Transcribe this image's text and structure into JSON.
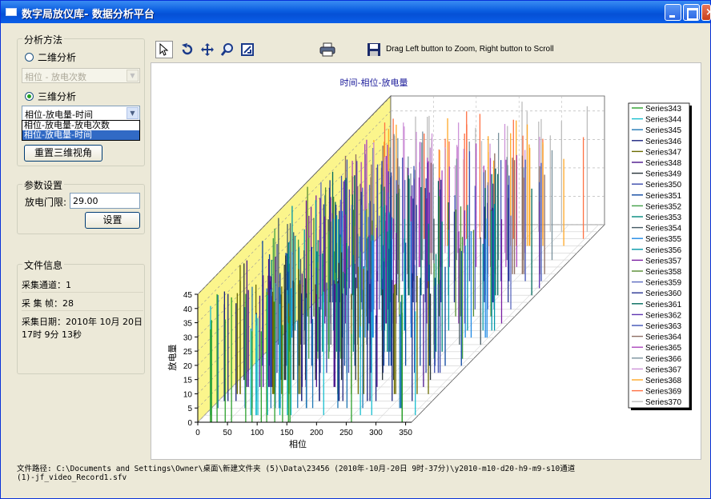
{
  "window": {
    "title": "数字局放仪库- 数据分析平台"
  },
  "analysis": {
    "legend": "分析方法",
    "mode_2d": "二维分析",
    "combo_2d": "相位 - 放电次数",
    "mode_3d": "三维分析",
    "combo_3d": "相位-放电量-时间",
    "options": [
      "相位-放电量-放电次数",
      "相位-放电量-时间"
    ],
    "reset_button": "重置三维视角"
  },
  "params": {
    "legend": "参数设置",
    "threshold_label": "放电门限:",
    "threshold_value": "29.00",
    "set_button": "设置"
  },
  "file_info": {
    "legend": "文件信息",
    "channel": "采集通道：1",
    "frames": "采 集 帧：28",
    "date": "采集日期：2010年 10月 20日 17时 9分 13秒"
  },
  "toolbar": {
    "hint": "Drag Left button to Zoom, Right button to Scroll"
  },
  "statusbar": {
    "line1": "文件路径:  C:\\Documents and Settings\\Owner\\桌面\\新建文件夹 (5)\\Data\\23456 (2010年-10月-20日 9时-37分)\\y2010-m10-d20-h9-m9-s10通道",
    "line2": "(1)-jf_video_Record1.sfv"
  },
  "chart_data": {
    "type": "3d-bar",
    "title": "时间-相位-放电量",
    "xlabel": "相位",
    "ylabel": "放电量",
    "xticks": [
      0,
      50,
      100,
      150,
      200,
      250,
      300,
      350
    ],
    "yticks": [
      0,
      5,
      10,
      15,
      20,
      25,
      30,
      35,
      40,
      45
    ],
    "xlim": [
      0,
      360
    ],
    "ylim": [
      0,
      45
    ],
    "series": [
      "Series343",
      "Series344",
      "Series345",
      "Series346",
      "Series347",
      "Series348",
      "Series349",
      "Series350",
      "Series351",
      "Series352",
      "Series353",
      "Series354",
      "Series355",
      "Series356",
      "Series357",
      "Series358",
      "Series359",
      "Series360",
      "Series361",
      "Series362",
      "Series363",
      "Series364",
      "Series365",
      "Series366",
      "Series367",
      "Series368",
      "Series369",
      "Series370"
    ],
    "series_colors": [
      "#2ca02c",
      "#17becf",
      "#1f77b4",
      "#1a237e",
      "#6b6b00",
      "#4a148c",
      "#263238",
      "#3949ab",
      "#0d47a1",
      "#43a047",
      "#00897b",
      "#455a64",
      "#1e88e5",
      "#0097a7",
      "#7b1fa2",
      "#558b2f",
      "#5c6bc0",
      "#283593",
      "#00695c",
      "#5e35b1",
      "#3f51b5",
      "#8d6e63",
      "#ab47bc",
      "#78909c",
      "#ce93d8",
      "#ffa726",
      "#ff7043",
      "#bdbdbd"
    ]
  }
}
